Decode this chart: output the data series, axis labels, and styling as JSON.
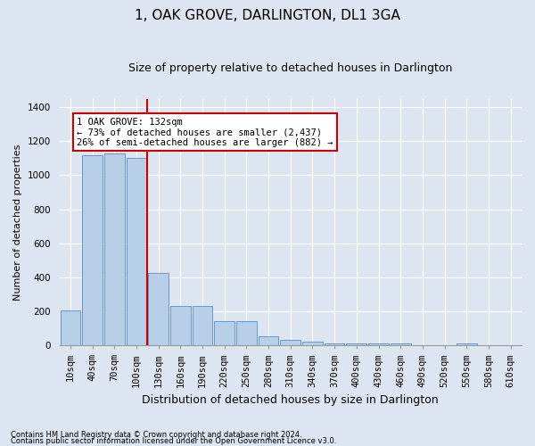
{
  "title": "1, OAK GROVE, DARLINGTON, DL1 3GA",
  "subtitle": "Size of property relative to detached houses in Darlington",
  "xlabel": "Distribution of detached houses by size in Darlington",
  "ylabel": "Number of detached properties",
  "footnote1": "Contains HM Land Registry data © Crown copyright and database right 2024.",
  "footnote2": "Contains public sector information licensed under the Open Government Licence v3.0.",
  "categories": [
    "10sqm",
    "40sqm",
    "70sqm",
    "100sqm",
    "130sqm",
    "160sqm",
    "190sqm",
    "220sqm",
    "250sqm",
    "280sqm",
    "310sqm",
    "340sqm",
    "370sqm",
    "400sqm",
    "430sqm",
    "460sqm",
    "490sqm",
    "520sqm",
    "550sqm",
    "580sqm",
    "610sqm"
  ],
  "values": [
    205,
    1120,
    1130,
    1100,
    425,
    230,
    230,
    140,
    140,
    55,
    30,
    20,
    10,
    10,
    10,
    10,
    0,
    0,
    10,
    0,
    0
  ],
  "bar_color": "#b8cfe8",
  "bar_edge_color": "#5b8cc8",
  "vline_index": 4,
  "vline_color": "#cc0000",
  "annotation_text": "1 OAK GROVE: 132sqm\n← 73% of detached houses are smaller (2,437)\n26% of semi-detached houses are larger (882) →",
  "annotation_box_color": "#ffffff",
  "annotation_box_edge": "#cc0000",
  "ylim": [
    0,
    1450
  ],
  "yticks": [
    0,
    200,
    400,
    600,
    800,
    1000,
    1200,
    1400
  ],
  "bg_color": "#dde6f0",
  "plot_bg_color": "#dde6f0",
  "title_fontsize": 11,
  "subtitle_fontsize": 9,
  "ylabel_fontsize": 8,
  "xlabel_fontsize": 9,
  "tick_fontsize": 7.5,
  "annot_fontsize": 7.5
}
